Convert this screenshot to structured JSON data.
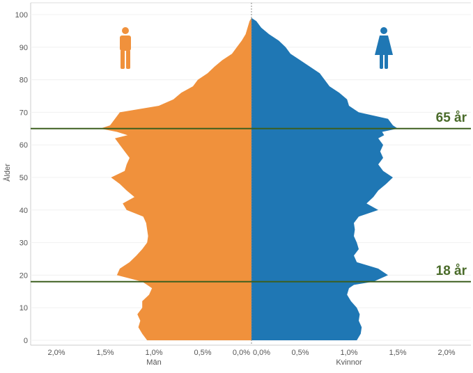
{
  "chart_data": {
    "type": "area",
    "subtype": "population-pyramid",
    "title": "",
    "ylabel": "Ålder",
    "y_ticks": [
      "0",
      "10",
      "20",
      "30",
      "40",
      "50",
      "60",
      "70",
      "80",
      "90",
      "100"
    ],
    "ylim": [
      0,
      100
    ],
    "left_axis": {
      "label": "Män",
      "ticks": [
        "2,0%",
        "1,5%",
        "1,0%",
        "0,5%",
        "0,0%"
      ],
      "xlim": [
        0,
        2.2
      ]
    },
    "right_axis": {
      "label": "Kvinnor",
      "ticks": [
        "0,0%",
        "0,5%",
        "1,0%",
        "1,5%",
        "2,0%"
      ],
      "xlim": [
        0,
        2.2
      ]
    },
    "grid": true,
    "colors": {
      "men": "#f0913c",
      "women": "#1f77b4",
      "reference_line": "#3c5f1e",
      "reference_label": "#4a6b2a"
    },
    "icons": {
      "men": "man-icon",
      "women": "woman-icon"
    },
    "reference_lines": [
      {
        "age": 65,
        "label": "65 år"
      },
      {
        "age": 18,
        "label": "18 år"
      }
    ],
    "series": [
      {
        "name": "Män",
        "ages": [
          0,
          2,
          4,
          6,
          8,
          10,
          12,
          14,
          16,
          17,
          18,
          20,
          22,
          24,
          26,
          28,
          30,
          32,
          34,
          36,
          38,
          40,
          42,
          44,
          46,
          48,
          50,
          52,
          54,
          56,
          58,
          60,
          62,
          63,
          64,
          65,
          66,
          68,
          70,
          72,
          74,
          76,
          78,
          80,
          82,
          84,
          86,
          88,
          90,
          92,
          94,
          96,
          98,
          99
        ],
        "values": [
          1.07,
          1.12,
          1.16,
          1.14,
          1.17,
          1.12,
          1.12,
          1.05,
          1.02,
          1.07,
          1.12,
          1.38,
          1.35,
          1.25,
          1.18,
          1.12,
          1.07,
          1.06,
          1.07,
          1.08,
          1.11,
          1.28,
          1.32,
          1.2,
          1.28,
          1.35,
          1.44,
          1.3,
          1.28,
          1.25,
          1.3,
          1.35,
          1.4,
          1.27,
          1.38,
          1.55,
          1.45,
          1.4,
          1.35,
          0.95,
          0.8,
          0.72,
          0.6,
          0.55,
          0.45,
          0.38,
          0.3,
          0.2,
          0.15,
          0.1,
          0.06,
          0.04,
          0.02,
          0.0
        ]
      },
      {
        "name": "Kvinnor",
        "ages": [
          0,
          2,
          4,
          6,
          8,
          10,
          12,
          14,
          16,
          17,
          18,
          20,
          22,
          24,
          26,
          28,
          30,
          32,
          34,
          36,
          38,
          40,
          42,
          44,
          46,
          48,
          50,
          52,
          54,
          56,
          58,
          60,
          62,
          63,
          64,
          65,
          66,
          68,
          70,
          72,
          74,
          76,
          78,
          80,
          82,
          84,
          86,
          88,
          90,
          92,
          94,
          96,
          98,
          99
        ],
        "values": [
          1.08,
          1.12,
          1.13,
          1.1,
          1.11,
          1.08,
          1.02,
          0.98,
          1.0,
          1.05,
          1.25,
          1.4,
          1.3,
          1.08,
          1.05,
          1.1,
          1.08,
          1.05,
          1.06,
          1.05,
          1.1,
          1.3,
          1.18,
          1.25,
          1.3,
          1.38,
          1.45,
          1.35,
          1.3,
          1.35,
          1.32,
          1.35,
          1.3,
          1.36,
          1.34,
          1.5,
          1.45,
          1.4,
          1.1,
          1.0,
          0.98,
          0.9,
          0.8,
          0.75,
          0.7,
          0.6,
          0.5,
          0.4,
          0.35,
          0.28,
          0.18,
          0.1,
          0.05,
          0.0
        ]
      }
    ]
  }
}
